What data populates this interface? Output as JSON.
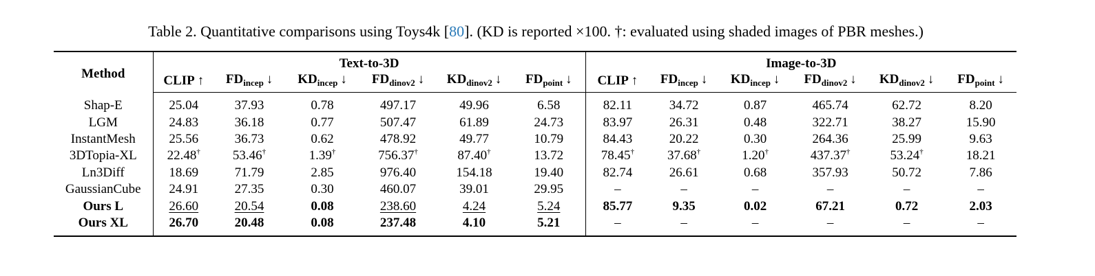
{
  "caption": {
    "prefix": "Table 2. Quantitative comparisons using Toys4k [",
    "ref": "80",
    "suffix": "]. (KD is reported ×100. †: evaluated using shaded images of PBR meshes.)"
  },
  "table": {
    "method_header": "Method",
    "groups": [
      "Text-to-3D",
      "Image-to-3D"
    ],
    "columns": [
      {
        "base": "CLIP",
        "arrow": "↑"
      },
      {
        "base": "FD",
        "sub": "incep",
        "arrow": "↓"
      },
      {
        "base": "KD",
        "sub": "incep",
        "arrow": "↓"
      },
      {
        "base": "FD",
        "sub": "dinov2",
        "arrow": "↓"
      },
      {
        "base": "KD",
        "sub": "dinov2",
        "arrow": "↓"
      },
      {
        "base": "FD",
        "sub": "point",
        "arrow": "↓"
      },
      {
        "base": "CLIP",
        "arrow": "↑"
      },
      {
        "base": "FD",
        "sub": "incep",
        "arrow": "↓"
      },
      {
        "base": "KD",
        "sub": "incep",
        "arrow": "↓"
      },
      {
        "base": "FD",
        "sub": "dinov2",
        "arrow": "↓"
      },
      {
        "base": "KD",
        "sub": "dinov2",
        "arrow": "↓"
      },
      {
        "base": "FD",
        "sub": "point",
        "arrow": "↓"
      }
    ],
    "rows": [
      {
        "method": "Shap-E",
        "cells": [
          "25.04",
          "37.93",
          "0.78",
          "497.17",
          "49.96",
          "6.58",
          "82.11",
          "34.72",
          "0.87",
          "465.74",
          "62.72",
          "8.20"
        ]
      },
      {
        "method": "LGM",
        "cells": [
          "24.83",
          "36.18",
          "0.77",
          "507.47",
          "61.89",
          "24.73",
          "83.97",
          "26.31",
          "0.48",
          "322.71",
          "38.27",
          "15.90"
        ]
      },
      {
        "method": "InstantMesh",
        "cells": [
          "25.56",
          "36.73",
          "0.62",
          "478.92",
          "49.77",
          "10.79",
          "84.43",
          "20.22",
          "0.30",
          "264.36",
          "25.99",
          "9.63"
        ]
      },
      {
        "method": "3DTopia-XL",
        "cells": [
          {
            "text": "22.48",
            "sup": "†"
          },
          {
            "text": "53.46",
            "sup": "†"
          },
          {
            "text": "1.39",
            "sup": "†"
          },
          {
            "text": "756.37",
            "sup": "†"
          },
          {
            "text": "87.40",
            "sup": "†"
          },
          "13.72",
          {
            "text": "78.45",
            "sup": "†"
          },
          {
            "text": "37.68",
            "sup": "†"
          },
          {
            "text": "1.20",
            "sup": "†"
          },
          {
            "text": "437.37",
            "sup": "†"
          },
          {
            "text": "53.24",
            "sup": "†"
          },
          "18.21"
        ]
      },
      {
        "method": "Ln3Diff",
        "cells": [
          "18.69",
          "71.79",
          "2.85",
          "976.40",
          "154.18",
          "19.40",
          "82.74",
          "26.61",
          "0.68",
          "357.93",
          "50.72",
          "7.86"
        ]
      },
      {
        "method": "GaussianCube",
        "cells": [
          "24.91",
          "27.35",
          "0.30",
          "460.07",
          "39.01",
          "29.95",
          "–",
          "–",
          "–",
          "–",
          "–",
          "–"
        ]
      },
      {
        "method": {
          "text": "Ours L",
          "style": "bold"
        },
        "cells": [
          {
            "text": "26.60",
            "style": "underline"
          },
          {
            "text": "20.54",
            "style": "underline"
          },
          {
            "text": "0.08",
            "style": "bold"
          },
          {
            "text": "238.60",
            "style": "underline"
          },
          {
            "text": "4.24",
            "style": "underline"
          },
          {
            "text": "5.24",
            "style": "underline"
          },
          {
            "text": "85.77",
            "style": "bold"
          },
          {
            "text": "9.35",
            "style": "bold"
          },
          {
            "text": "0.02",
            "style": "bold"
          },
          {
            "text": "67.21",
            "style": "bold"
          },
          {
            "text": "0.72",
            "style": "bold"
          },
          {
            "text": "2.03",
            "style": "bold"
          }
        ]
      },
      {
        "method": {
          "text": "Ours XL",
          "style": "bold"
        },
        "cells": [
          {
            "text": "26.70",
            "style": "bold"
          },
          {
            "text": "20.48",
            "style": "bold"
          },
          {
            "text": "0.08",
            "style": "bold"
          },
          {
            "text": "237.48",
            "style": "bold"
          },
          {
            "text": "4.10",
            "style": "bold"
          },
          {
            "text": "5.21",
            "style": "bold"
          },
          "–",
          "–",
          "–",
          "–",
          "–",
          "–"
        ]
      }
    ]
  }
}
